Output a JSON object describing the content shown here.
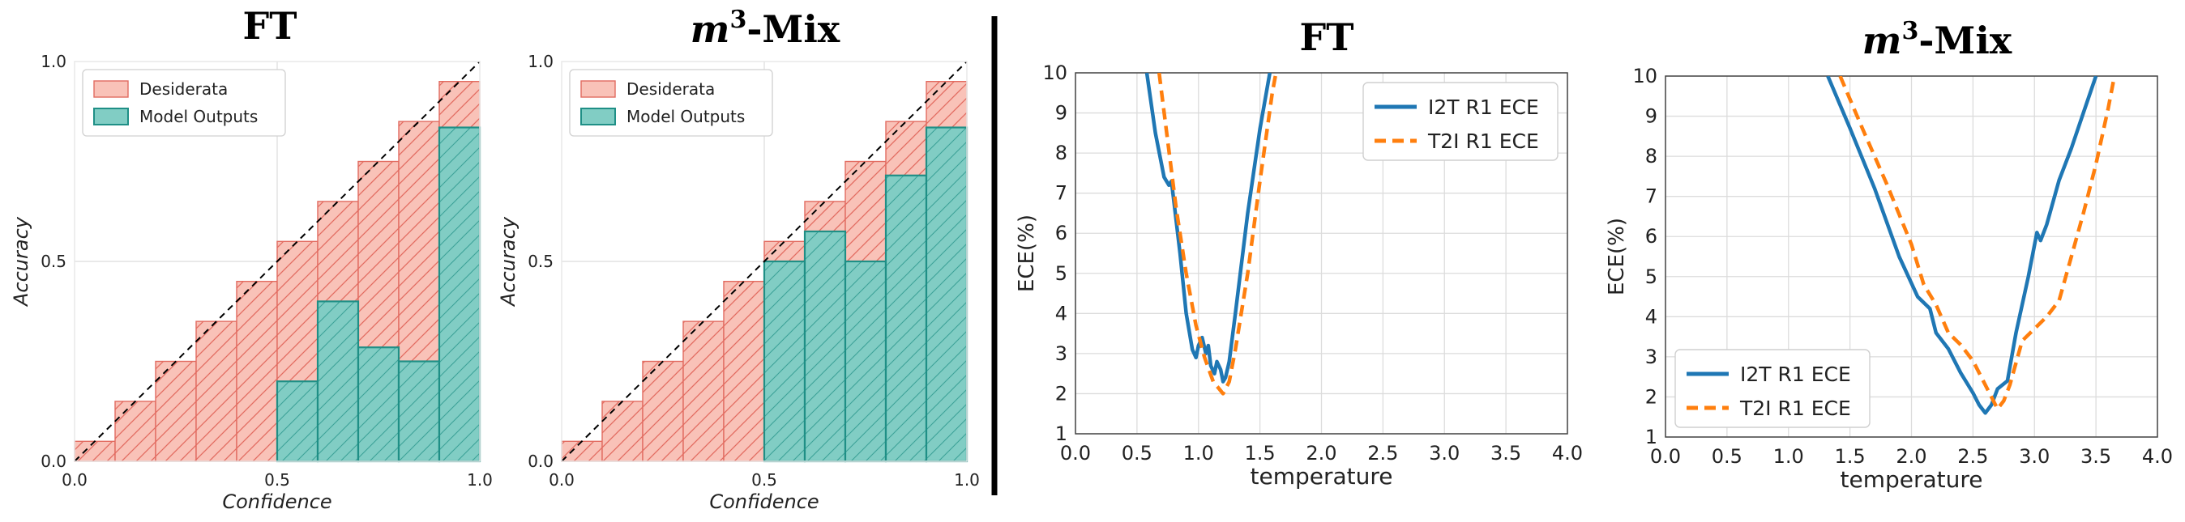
{
  "colors": {
    "desiderata_fill": "#f9c2b8",
    "desiderata_edge": "#e26b60",
    "outputs_fill": "#81cdc4",
    "outputs_edge": "#1f8f86",
    "i2t": "#1f77b4",
    "t2i": "#ff7f0e",
    "grid": "#dcdcdc",
    "divider": "#000000"
  },
  "chart_data": [
    {
      "type": "bar",
      "panel": "reliability",
      "title_main": "FT",
      "title_super": "",
      "title_suffix": "",
      "xlabel": "Confidence",
      "ylabel": "Accuracy",
      "xlim": [
        0.0,
        1.0
      ],
      "ylim": [
        0.0,
        1.0
      ],
      "xticks": [
        "0.0",
        "0.5",
        "1.0"
      ],
      "yticks": [
        "0.0",
        "0.5",
        "1.0"
      ],
      "bin_width": 0.1,
      "bins": [
        0.0,
        0.1,
        0.2,
        0.3,
        0.4,
        0.5,
        0.6,
        0.7,
        0.8,
        0.9
      ],
      "series": [
        {
          "name": "Desiderata",
          "values": [
            0.05,
            0.15,
            0.25,
            0.35,
            0.45,
            0.55,
            0.65,
            0.75,
            0.85,
            0.95
          ]
        },
        {
          "name": "Model Outputs",
          "values": [
            0,
            0,
            0,
            0,
            0,
            0.2,
            0.4,
            0.285,
            0.25,
            0.835
          ]
        }
      ],
      "legend": "top-left",
      "grid": true
    },
    {
      "type": "bar",
      "panel": "reliability",
      "title_main": "",
      "title_super": "3",
      "title_suffix": "-Mix",
      "title_italic": "m",
      "xlabel": "Confidence",
      "ylabel": "Accuracy",
      "xlim": [
        0.0,
        1.0
      ],
      "ylim": [
        0.0,
        1.0
      ],
      "xticks": [
        "0.0",
        "0.5",
        "1.0"
      ],
      "yticks": [
        "0.0",
        "0.5",
        "1.0"
      ],
      "bin_width": 0.1,
      "bins": [
        0.0,
        0.1,
        0.2,
        0.3,
        0.4,
        0.5,
        0.6,
        0.7,
        0.8,
        0.9
      ],
      "series": [
        {
          "name": "Desiderata",
          "values": [
            0.05,
            0.15,
            0.25,
            0.35,
            0.45,
            0.55,
            0.65,
            0.75,
            0.85,
            0.95
          ]
        },
        {
          "name": "Model Outputs",
          "values": [
            0,
            0,
            0,
            0,
            0,
            0.5,
            0.575,
            0.5,
            0.715,
            0.835
          ]
        }
      ],
      "legend": "top-left",
      "grid": true
    },
    {
      "type": "line",
      "panel": "ece",
      "title_main": "FT",
      "title_super": "",
      "title_suffix": "",
      "xlabel": "temperature",
      "ylabel": "ECE(%)",
      "xlim": [
        0.0,
        4.0
      ],
      "ylim": [
        1,
        10
      ],
      "xticks": [
        "0.0",
        "0.5",
        "1.0",
        "1.5",
        "2.0",
        "2.5",
        "3.0",
        "3.5",
        "4.0"
      ],
      "yticks": [
        "1",
        "2",
        "3",
        "4",
        "5",
        "6",
        "7",
        "8",
        "9",
        "10"
      ],
      "series": [
        {
          "name": "I2T R1 ECE",
          "dashed": false,
          "x": [
            0.58,
            0.65,
            0.72,
            0.76,
            0.78,
            0.8,
            0.85,
            0.9,
            0.95,
            0.98,
            1.0,
            1.03,
            1.06,
            1.08,
            1.1,
            1.13,
            1.15,
            1.18,
            1.2,
            1.22,
            1.25,
            1.3,
            1.4,
            1.5,
            1.58
          ],
          "y": [
            10.0,
            8.5,
            7.4,
            7.2,
            7.3,
            6.8,
            5.5,
            4.0,
            3.1,
            2.9,
            3.2,
            3.4,
            3.0,
            3.2,
            2.7,
            2.5,
            2.8,
            2.6,
            2.3,
            2.4,
            2.8,
            4.0,
            6.5,
            8.6,
            10.0
          ]
        },
        {
          "name": "T2I R1 ECE",
          "dashed": true,
          "x": [
            0.68,
            0.75,
            0.82,
            0.9,
            0.98,
            1.05,
            1.12,
            1.2,
            1.25,
            1.3,
            1.4,
            1.5,
            1.6,
            1.63
          ],
          "y": [
            10.0,
            8.3,
            6.6,
            5.0,
            3.7,
            2.9,
            2.3,
            2.0,
            2.3,
            3.1,
            5.0,
            7.3,
            9.5,
            10.0
          ]
        }
      ],
      "legend": "top-right",
      "grid": true
    },
    {
      "type": "line",
      "panel": "ece",
      "title_main": "",
      "title_super": "3",
      "title_suffix": "-Mix",
      "title_italic": "m",
      "xlabel": "temperature",
      "ylabel": "ECE(%)",
      "xlim": [
        0.0,
        4.0
      ],
      "ylim": [
        1,
        10
      ],
      "xticks": [
        "0.0",
        "0.5",
        "1.0",
        "1.5",
        "2.0",
        "2.5",
        "3.0",
        "3.5",
        "4.0"
      ],
      "yticks": [
        "1",
        "2",
        "3",
        "4",
        "5",
        "6",
        "7",
        "8",
        "9",
        "10"
      ],
      "series": [
        {
          "name": "I2T R1 ECE",
          "dashed": false,
          "x": [
            1.32,
            1.5,
            1.7,
            1.9,
            2.05,
            2.15,
            2.2,
            2.3,
            2.4,
            2.5,
            2.55,
            2.6,
            2.65,
            2.7,
            2.78,
            2.85,
            2.95,
            3.02,
            3.05,
            3.1,
            3.2,
            3.3,
            3.4,
            3.5
          ],
          "y": [
            10.0,
            8.7,
            7.2,
            5.5,
            4.5,
            4.2,
            3.6,
            3.2,
            2.6,
            2.1,
            1.8,
            1.6,
            1.8,
            2.2,
            2.4,
            3.6,
            5.0,
            6.1,
            5.9,
            6.3,
            7.4,
            8.2,
            9.1,
            10.0
          ]
        },
        {
          "name": "T2I R1 ECE",
          "dashed": true,
          "x": [
            1.42,
            1.6,
            1.8,
            2.0,
            2.1,
            2.2,
            2.3,
            2.4,
            2.5,
            2.6,
            2.65,
            2.7,
            2.75,
            2.8,
            2.9,
            3.0,
            3.1,
            3.2,
            3.3,
            3.4,
            3.5,
            3.6,
            3.65
          ],
          "y": [
            10.0,
            8.7,
            7.3,
            5.8,
            4.8,
            4.3,
            3.6,
            3.3,
            2.9,
            2.3,
            2.0,
            1.7,
            1.9,
            2.3,
            3.4,
            3.7,
            4.0,
            4.4,
            5.5,
            6.6,
            7.8,
            9.2,
            10.0
          ]
        }
      ],
      "legend": "bottom-left",
      "grid": true
    }
  ]
}
